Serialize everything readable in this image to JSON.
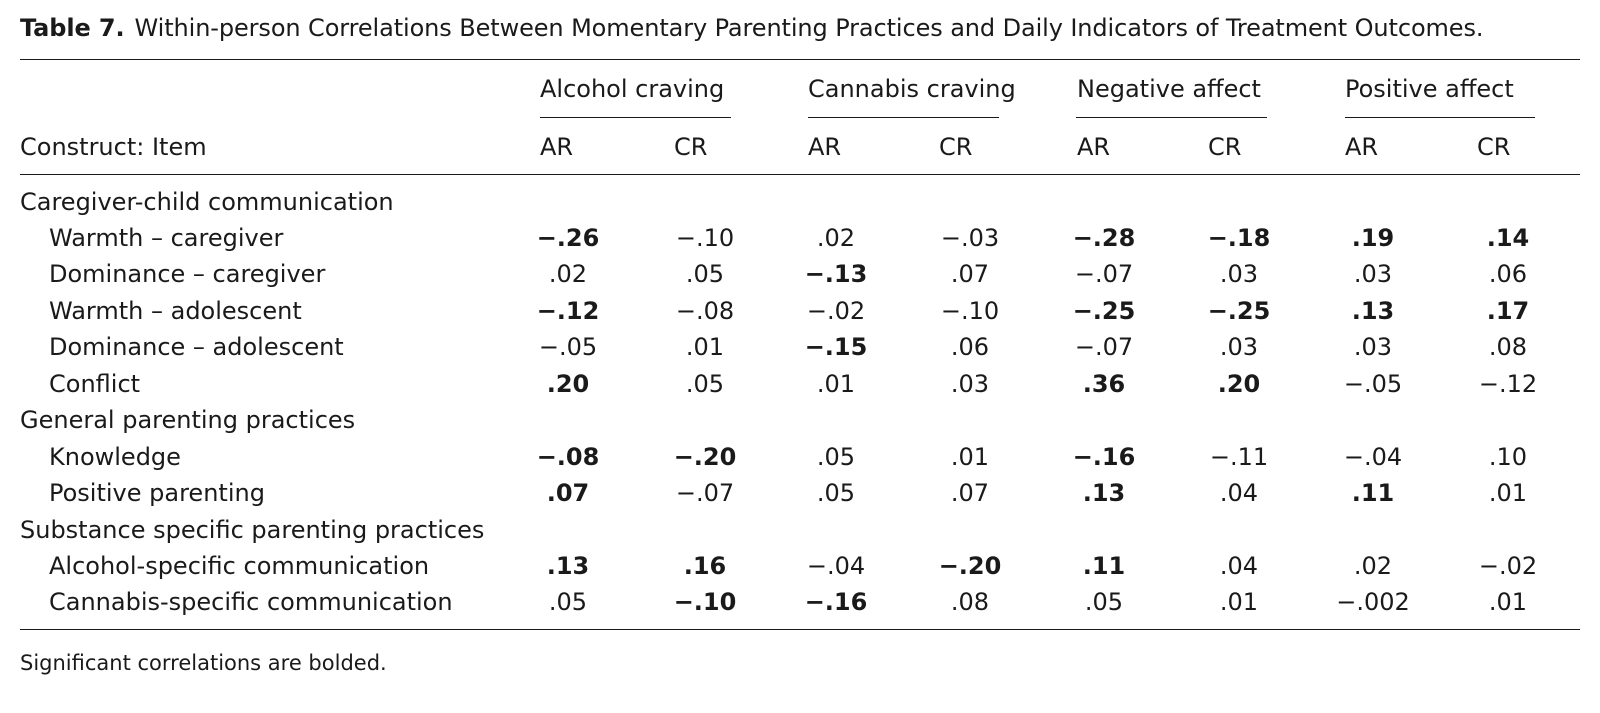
{
  "table": {
    "label": "Table 7.",
    "title": "Within-person Correlations Between Momentary Parenting Practices and Daily Indicators of Treatment Outcomes.",
    "stub_header": "Construct: Item",
    "column_groups": [
      {
        "label": "Alcohol craving",
        "subcolumns": [
          "AR",
          "CR"
        ]
      },
      {
        "label": "Cannabis craving",
        "subcolumns": [
          "AR",
          "CR"
        ]
      },
      {
        "label": "Negative affect",
        "subcolumns": [
          "AR",
          "CR"
        ]
      },
      {
        "label": "Positive affect",
        "subcolumns": [
          "AR",
          "CR"
        ]
      }
    ],
    "rows": [
      {
        "type": "section",
        "label": "Caregiver-child communication"
      },
      {
        "type": "item",
        "label": "Warmth – caregiver",
        "values": [
          "−.26",
          "−.10",
          ".02",
          "−.03",
          "−.28",
          "−.18",
          ".19",
          ".14"
        ],
        "bold": [
          true,
          false,
          false,
          false,
          true,
          true,
          true,
          true
        ]
      },
      {
        "type": "item",
        "label": "Dominance – caregiver",
        "values": [
          ".02",
          ".05",
          "−.13",
          ".07",
          "−.07",
          ".03",
          ".03",
          ".06"
        ],
        "bold": [
          false,
          false,
          true,
          false,
          false,
          false,
          false,
          false
        ]
      },
      {
        "type": "item",
        "label": "Warmth – adolescent",
        "values": [
          "−.12",
          "−.08",
          "−.02",
          "−.10",
          "−.25",
          "−.25",
          ".13",
          ".17"
        ],
        "bold": [
          true,
          false,
          false,
          false,
          true,
          true,
          true,
          true
        ]
      },
      {
        "type": "item",
        "label": "Dominance – adolescent",
        "values": [
          "−.05",
          ".01",
          "−.15",
          ".06",
          "−.07",
          ".03",
          ".03",
          ".08"
        ],
        "bold": [
          false,
          false,
          true,
          false,
          false,
          false,
          false,
          false
        ]
      },
      {
        "type": "item",
        "label": "Conflict",
        "values": [
          ".20",
          ".05",
          ".01",
          ".03",
          ".36",
          ".20",
          "−.05",
          "−.12"
        ],
        "bold": [
          true,
          false,
          false,
          false,
          true,
          true,
          false,
          false
        ]
      },
      {
        "type": "section",
        "label": "General parenting practices"
      },
      {
        "type": "item",
        "label": "Knowledge",
        "values": [
          "−.08",
          "−.20",
          ".05",
          ".01",
          "−.16",
          "−.11",
          "−.04",
          ".10"
        ],
        "bold": [
          true,
          true,
          false,
          false,
          true,
          false,
          false,
          false
        ]
      },
      {
        "type": "item",
        "label": "Positive parenting",
        "values": [
          ".07",
          "−.07",
          ".05",
          ".07",
          ".13",
          ".04",
          ".11",
          ".01"
        ],
        "bold": [
          true,
          false,
          false,
          false,
          true,
          false,
          true,
          false
        ]
      },
      {
        "type": "section",
        "label": "Substance specific parenting practices"
      },
      {
        "type": "item",
        "label": "Alcohol-specific communication",
        "values": [
          ".13",
          ".16",
          "−.04",
          "−.20",
          ".11",
          ".04",
          ".02",
          "−.02"
        ],
        "bold": [
          true,
          true,
          false,
          true,
          true,
          false,
          false,
          false
        ]
      },
      {
        "type": "item",
        "label": "Cannabis-specific communication",
        "values": [
          ".05",
          "−.10",
          "−.16",
          ".08",
          ".05",
          ".01",
          "−.002",
          ".01"
        ],
        "bold": [
          false,
          true,
          true,
          false,
          false,
          false,
          false,
          false
        ]
      }
    ],
    "note": "Significant correlations are bolded."
  }
}
